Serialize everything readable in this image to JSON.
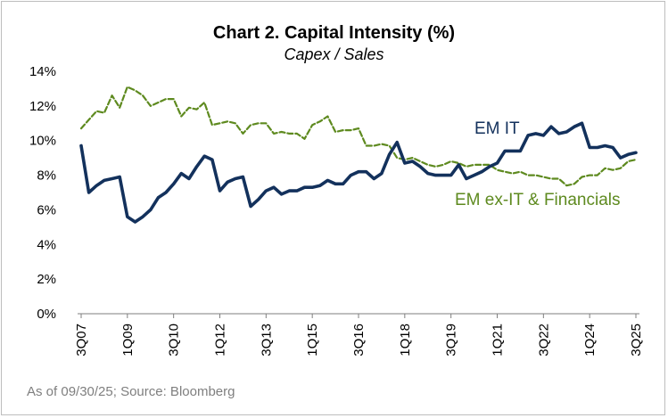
{
  "chart_data": {
    "type": "line",
    "title": "Chart 2. Capital Intensity (%)",
    "subtitle": "Capex / Sales",
    "xlabel": "",
    "ylabel": "",
    "ylim": [
      0,
      14
    ],
    "ytick_labels": [
      "0%",
      "2%",
      "4%",
      "6%",
      "8%",
      "10%",
      "12%",
      "14%"
    ],
    "yticks": [
      0,
      2,
      4,
      6,
      8,
      10,
      12,
      14
    ],
    "xtick_labels": [
      "3Q07",
      "1Q09",
      "3Q10",
      "1Q12",
      "3Q13",
      "1Q15",
      "3Q16",
      "1Q18",
      "3Q19",
      "1Q21",
      "3Q22",
      "1Q24",
      "3Q25"
    ],
    "xtick_index": [
      0,
      6,
      12,
      18,
      24,
      30,
      36,
      42,
      48,
      54,
      60,
      66,
      72
    ],
    "grid": false,
    "series": [
      {
        "name": "EM IT",
        "color": "#13315c",
        "style": "solid",
        "values": [
          9.7,
          7.0,
          7.4,
          7.7,
          7.8,
          7.9,
          5.6,
          5.3,
          5.6,
          6.0,
          6.7,
          7.0,
          7.5,
          8.1,
          7.8,
          8.5,
          9.1,
          8.9,
          7.1,
          7.6,
          7.8,
          7.9,
          6.2,
          6.6,
          7.1,
          7.3,
          6.9,
          7.1,
          7.1,
          7.3,
          7.3,
          7.4,
          7.7,
          7.5,
          7.5,
          8.0,
          8.2,
          8.2,
          7.8,
          8.1,
          9.2,
          9.9,
          8.7,
          8.8,
          8.5,
          8.1,
          8.0,
          8.0,
          8.0,
          8.6,
          7.8,
          8.0,
          8.2,
          8.5,
          8.7,
          9.4,
          9.4,
          9.4,
          10.3,
          10.4,
          10.3,
          10.8,
          10.4,
          10.5,
          10.8,
          11.0,
          9.6,
          9.6,
          9.7,
          9.6,
          9.0,
          9.2,
          9.3
        ]
      },
      {
        "name": "EM ex-IT & Financials",
        "color": "#5e8a1f",
        "style": "dashed",
        "values": [
          10.7,
          11.2,
          11.7,
          11.6,
          12.6,
          11.9,
          13.1,
          12.9,
          12.6,
          12.0,
          12.2,
          12.4,
          12.4,
          11.4,
          11.9,
          11.8,
          12.2,
          10.9,
          11.0,
          11.1,
          11.0,
          10.4,
          10.9,
          11.0,
          11.0,
          10.4,
          10.5,
          10.4,
          10.4,
          10.1,
          10.9,
          11.1,
          11.4,
          10.5,
          10.6,
          10.6,
          10.7,
          9.7,
          9.7,
          9.8,
          9.7,
          9.0,
          8.9,
          9.0,
          8.8,
          8.6,
          8.5,
          8.6,
          8.8,
          8.7,
          8.5,
          8.6,
          8.6,
          8.6,
          8.3,
          8.2,
          8.1,
          8.2,
          8.0,
          8.0,
          7.9,
          7.8,
          7.8,
          7.4,
          7.5,
          7.9,
          8.0,
          8.0,
          8.4,
          8.3,
          8.4,
          8.8,
          8.9
        ]
      }
    ],
    "annotations": [
      "EM IT",
      "EM ex-IT & Financials"
    ]
  },
  "source_note": "As of 09/30/25; Source:  Bloomberg"
}
